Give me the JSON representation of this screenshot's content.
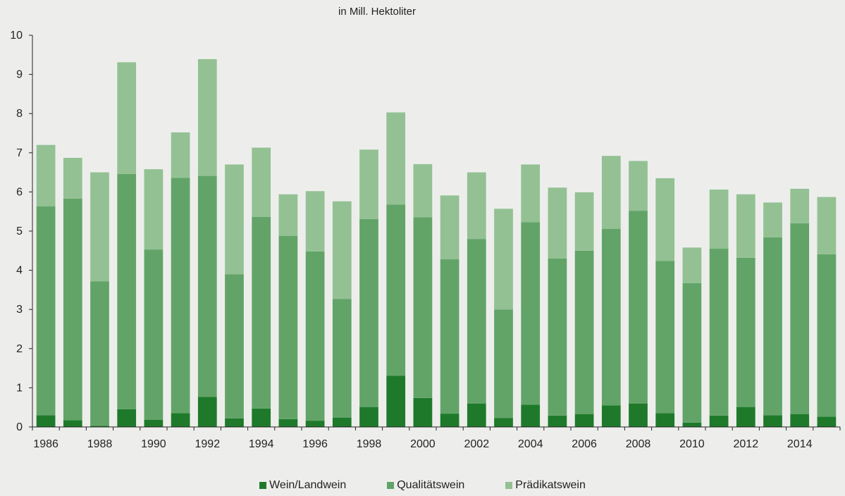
{
  "unit_label": "in Mill. Hektoliter",
  "colors": {
    "background": "#edeeec",
    "wein_landwein": "#1e7a2a",
    "qualitaetswein": "#62a468",
    "praedikatswein": "#93c193",
    "axis": "#222222"
  },
  "chart_data": {
    "type": "bar",
    "stacked": true,
    "title": "",
    "xlabel": "",
    "ylabel": "in Mill. Hektoliter",
    "ylim": [
      0,
      10
    ],
    "yticks": [
      0,
      1,
      2,
      3,
      4,
      5,
      6,
      7,
      8,
      9,
      10
    ],
    "categories": [
      1986,
      1987,
      1988,
      1989,
      1990,
      1991,
      1992,
      1993,
      1994,
      1995,
      1996,
      1997,
      1998,
      1999,
      2000,
      2001,
      2002,
      2003,
      2004,
      2005,
      2006,
      2007,
      2008,
      2009,
      2010,
      2011,
      2012,
      2013,
      2014,
      2015
    ],
    "xtick_labels": [
      "1986",
      "1988",
      "1990",
      "1992",
      "1994",
      "1996",
      "1998",
      "2000",
      "2002",
      "2004",
      "2006",
      "2008",
      "2010",
      "2012",
      "2014"
    ],
    "grid": false,
    "legend_position": "bottom",
    "series": [
      {
        "name": "Wein/Landwein",
        "color": "#1e7a2a",
        "values": [
          0.3,
          0.17,
          0.03,
          0.45,
          0.18,
          0.35,
          0.77,
          0.22,
          0.47,
          0.2,
          0.16,
          0.24,
          0.51,
          1.31,
          0.74,
          0.34,
          0.6,
          0.23,
          0.57,
          0.29,
          0.33,
          0.55,
          0.6,
          0.35,
          0.11,
          0.29,
          0.51,
          0.3,
          0.33,
          0.26
        ]
      },
      {
        "name": "Qualitätswein",
        "color": "#62a468",
        "values": [
          5.33,
          5.66,
          3.69,
          6.01,
          4.35,
          6.01,
          5.64,
          3.68,
          4.89,
          4.68,
          4.32,
          3.03,
          4.8,
          4.37,
          4.61,
          3.94,
          4.2,
          2.77,
          4.66,
          4.01,
          4.17,
          4.51,
          4.92,
          3.89,
          3.56,
          4.26,
          3.81,
          4.54,
          4.87,
          4.15
        ]
      },
      {
        "name": "Prädikatswein",
        "color": "#93c193",
        "values": [
          1.57,
          1.04,
          2.78,
          2.85,
          2.05,
          1.16,
          2.98,
          2.8,
          1.77,
          1.06,
          1.54,
          2.49,
          1.77,
          2.35,
          1.36,
          1.63,
          1.7,
          2.57,
          1.47,
          1.81,
          1.49,
          1.86,
          1.27,
          2.11,
          0.91,
          1.51,
          1.62,
          0.89,
          0.88,
          1.46
        ]
      }
    ]
  }
}
